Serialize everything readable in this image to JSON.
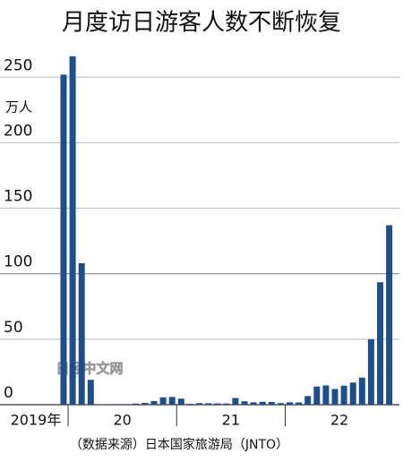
{
  "chart_data": {
    "type": "bar",
    "title": "月度访日游客人数不断恢复",
    "y_unit": "万人",
    "source": "（数据来源）日本国家旅游局（JNTO）",
    "watermark": "日经中文网",
    "categories": [
      "2019年",
      null,
      null,
      null,
      null,
      null,
      "20",
      null,
      null,
      null,
      null,
      null,
      null,
      null,
      null,
      null,
      null,
      null,
      "21",
      null,
      null,
      null,
      null,
      null,
      null,
      null,
      null,
      null,
      null,
      null,
      "22",
      null,
      null,
      null,
      null,
      null,
      null
    ],
    "values": [
      252,
      266,
      108,
      19,
      0.3,
      0.2,
      0.4,
      0.4,
      0.9,
      1.4,
      2.8,
      5.6,
      5.9,
      4.6,
      0.7,
      1.2,
      1.1,
      1.0,
      0.9,
      5.1,
      2.6,
      1.8,
      2.2,
      2.1,
      1.2,
      1.8,
      1.7,
      6.6,
      13.9,
      14.7,
      12.0,
      14.5,
      16.9,
      20.7,
      49.9,
      93.5,
      137
    ],
    "color": "#1f4e8c",
    "ylim": [
      0,
      270
    ],
    "yticks": [
      0,
      50,
      100,
      150,
      200,
      250
    ],
    "grid": true
  }
}
